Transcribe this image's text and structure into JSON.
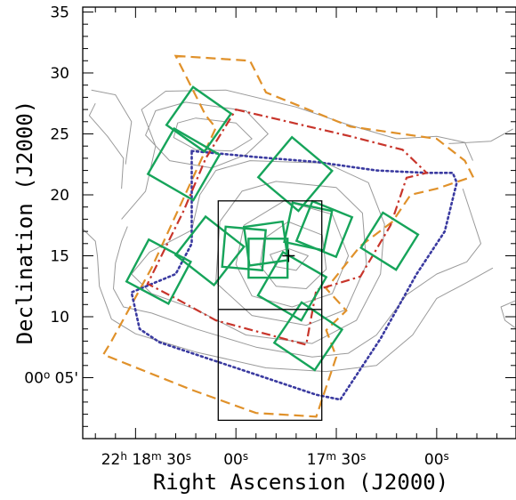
{
  "chart_data": {
    "type": "sky-map",
    "xlabel": "Right Ascension (J2000)",
    "ylabel": "Declination (J2000)",
    "x_tick_labels": [
      {
        "ra_min": 18.5,
        "parts": [
          [
            "22",
            ""
          ],
          [
            "h",
            "sup"
          ],
          [
            " 18",
            ""
          ],
          [
            "m",
            "sup"
          ],
          [
            " 30",
            ""
          ],
          [
            "s",
            "sup"
          ]
        ]
      },
      {
        "ra_min": 18.0,
        "parts": [
          [
            "00",
            ""
          ],
          [
            "s",
            "sup"
          ]
        ]
      },
      {
        "ra_min": 17.5,
        "parts": [
          [
            "17",
            ""
          ],
          [
            "m",
            "sup"
          ],
          [
            " 30",
            ""
          ],
          [
            "s",
            "sup"
          ]
        ]
      },
      {
        "ra_min": 17.0,
        "parts": [
          [
            "00",
            ""
          ],
          [
            "s",
            "sup"
          ]
        ]
      }
    ],
    "y_ticks": [
      {
        "dec_arcmin": 10,
        "label": "10"
      },
      {
        "dec_arcmin": 15,
        "label": "15"
      },
      {
        "dec_arcmin": 20,
        "label": "20"
      },
      {
        "dec_arcmin": 25,
        "label": "25"
      },
      {
        "dec_arcmin": 30,
        "label": "30"
      },
      {
        "dec_arcmin": 35,
        "label": "35"
      }
    ],
    "y_special_label": {
      "dec_arcmin": 5,
      "parts": [
        [
          "00",
          ""
        ],
        [
          "o",
          "sup"
        ],
        [
          " 05'",
          ""
        ]
      ]
    },
    "xlim_ra_min": [
      18.763,
      16.605
    ],
    "ylim_dec_arcmin": [
      0,
      35.4
    ],
    "colors": {
      "contour": "#9a9a9a",
      "fields": "#16a45a",
      "dashed": "#e0912a",
      "dashdot": "#c8352b",
      "dotted": "#3a3aa0",
      "box": "#000000"
    },
    "central_marker": {
      "ra_min": 17.738,
      "dec_arcmin": 15.0
    },
    "rect_box": {
      "ra_min": [
        18.088,
        17.572
      ],
      "dec_arcmin": [
        1.5,
        19.5
      ],
      "divider_dec": 10.6
    },
    "dashed_outline": [
      [
        18.3,
        31.4
      ],
      [
        17.93,
        31.0
      ],
      [
        17.85,
        28.4
      ],
      [
        17.43,
        25.6
      ],
      [
        17.0,
        24.6
      ],
      [
        16.86,
        22.8
      ],
      [
        16.82,
        21.5
      ],
      [
        17.0,
        20.5
      ],
      [
        17.13,
        20.0
      ],
      [
        17.22,
        17.8
      ],
      [
        17.38,
        15.8
      ],
      [
        17.55,
        12.3
      ],
      [
        17.45,
        10.5
      ],
      [
        17.55,
        8.9
      ],
      [
        17.5,
        6.7
      ],
      [
        17.6,
        1.8
      ],
      [
        17.9,
        2.1
      ],
      [
        18.22,
        4.0
      ],
      [
        18.66,
        6.9
      ],
      [
        18.62,
        8.0
      ],
      [
        18.42,
        14.0
      ],
      [
        18.1,
        25.5
      ],
      [
        18.15,
        26.5
      ]
    ],
    "dashdot_outline": [
      [
        18.0,
        27.0
      ],
      [
        17.43,
        24.8
      ],
      [
        17.17,
        23.7
      ],
      [
        17.05,
        21.8
      ],
      [
        17.15,
        21.4
      ],
      [
        17.23,
        17.5
      ],
      [
        17.38,
        13.3
      ],
      [
        17.6,
        12.2
      ],
      [
        17.65,
        7.7
      ],
      [
        18.1,
        9.7
      ],
      [
        18.3,
        11.5
      ],
      [
        18.44,
        12.7
      ],
      [
        18.26,
        18.7
      ],
      [
        18.15,
        23.0
      ]
    ],
    "dotted_outline": [
      [
        18.22,
        23.6
      ],
      [
        17.9,
        23.1
      ],
      [
        17.6,
        22.7
      ],
      [
        17.3,
        22.0
      ],
      [
        17.05,
        21.8
      ],
      [
        16.92,
        21.8
      ],
      [
        16.9,
        21.0
      ],
      [
        16.96,
        17.0
      ],
      [
        17.1,
        13.5
      ],
      [
        17.28,
        8.2
      ],
      [
        17.48,
        3.2
      ],
      [
        17.6,
        3.6
      ],
      [
        18.0,
        5.8
      ],
      [
        18.38,
        7.9
      ],
      [
        18.48,
        9.0
      ],
      [
        18.52,
        12.0
      ],
      [
        18.3,
        13.5
      ],
      [
        18.22,
        16.0
      ]
    ],
    "field_squares": [
      {
        "ra_min": 18.26,
        "dec_arcmin": 22.5,
        "size_arcmin": 4.3,
        "rot_deg": 30
      },
      {
        "ra_min": 18.185,
        "dec_arcmin": 26.2,
        "size_arcmin": 3.8,
        "rot_deg": 35
      },
      {
        "ra_min": 17.705,
        "dec_arcmin": 21.7,
        "size_arcmin": 4.3,
        "rot_deg": 40
      },
      {
        "ra_min": 18.13,
        "dec_arcmin": 15.4,
        "size_arcmin": 4.0,
        "rot_deg": 38
      },
      {
        "ra_min": 18.385,
        "dec_arcmin": 13.7,
        "size_arcmin": 3.9,
        "rot_deg": 28
      },
      {
        "ra_min": 17.96,
        "dec_arcmin": 15.6,
        "size_arcmin": 3.3,
        "rot_deg": 5
      },
      {
        "ra_min": 17.85,
        "dec_arcmin": 16.0,
        "size_arcmin": 3.2,
        "rot_deg": -8
      },
      {
        "ra_min": 17.84,
        "dec_arcmin": 14.8,
        "size_arcmin": 3.2,
        "rot_deg": 0
      },
      {
        "ra_min": 17.64,
        "dec_arcmin": 17.4,
        "size_arcmin": 3.3,
        "rot_deg": 12
      },
      {
        "ra_min": 17.56,
        "dec_arcmin": 17.2,
        "size_arcmin": 3.5,
        "rot_deg": 22
      },
      {
        "ra_min": 17.72,
        "dec_arcmin": 12.5,
        "size_arcmin": 4.1,
        "rot_deg": 30
      },
      {
        "ra_min": 17.235,
        "dec_arcmin": 16.2,
        "size_arcmin": 3.4,
        "rot_deg": 32
      },
      {
        "ra_min": 17.64,
        "dec_arcmin": 8.4,
        "size_arcmin": 4.0,
        "rot_deg": 34
      }
    ],
    "contours": [
      {
        "closed": true,
        "pts": [
          [
            17.74,
            15.6
          ],
          [
            17.64,
            15.0
          ],
          [
            17.7,
            13.8
          ],
          [
            17.8,
            14.1
          ],
          [
            17.83,
            15.1
          ]
        ]
      },
      {
        "closed": true,
        "pts": [
          [
            17.74,
            17.8
          ],
          [
            17.57,
            16.7
          ],
          [
            17.55,
            13.9
          ],
          [
            17.65,
            12.3
          ],
          [
            17.8,
            12.5
          ],
          [
            17.88,
            14.2
          ],
          [
            17.86,
            16.4
          ]
        ]
      },
      {
        "closed": true,
        "pts": [
          [
            17.76,
            19.5
          ],
          [
            17.52,
            18.4
          ],
          [
            17.44,
            15.0
          ],
          [
            17.52,
            11.9
          ],
          [
            17.72,
            10.8
          ],
          [
            17.92,
            11.7
          ],
          [
            18.0,
            14.3
          ],
          [
            17.96,
            17.5
          ]
        ]
      },
      {
        "closed": true,
        "pts": [
          [
            17.8,
            21.1
          ],
          [
            17.5,
            20.6
          ],
          [
            17.37,
            18.5
          ],
          [
            17.35,
            14.3
          ],
          [
            17.45,
            10.6
          ],
          [
            17.65,
            9.3
          ],
          [
            17.92,
            10.1
          ],
          [
            18.1,
            12.8
          ],
          [
            18.08,
            17.8
          ],
          [
            17.97,
            20.3
          ]
        ]
      },
      {
        "closed": true,
        "pts": [
          [
            17.93,
            22.8
          ],
          [
            17.55,
            22.6
          ],
          [
            17.34,
            21.0
          ],
          [
            17.26,
            17.6
          ],
          [
            17.28,
            13.5
          ],
          [
            17.4,
            9.7
          ],
          [
            17.62,
            7.8
          ],
          [
            17.95,
            8.5
          ],
          [
            18.2,
            10.6
          ],
          [
            18.42,
            11.9
          ],
          [
            18.52,
            13.5
          ],
          [
            18.43,
            15.3
          ],
          [
            18.22,
            17.1
          ],
          [
            18.18,
            20.0
          ],
          [
            18.1,
            22.0
          ]
        ]
      },
      {
        "closed": true,
        "pts": [
          [
            18.2,
            26.3
          ],
          [
            18.0,
            25.9
          ],
          [
            17.92,
            24.6
          ],
          [
            18.02,
            23.6
          ],
          [
            18.2,
            23.7
          ],
          [
            18.31,
            24.7
          ],
          [
            18.29,
            25.9
          ]
        ]
      },
      {
        "closed": true,
        "pts": [
          [
            18.25,
            27.6
          ],
          [
            17.95,
            26.9
          ],
          [
            17.84,
            25.0
          ],
          [
            17.95,
            23.3
          ],
          [
            18.12,
            22.2
          ],
          [
            18.33,
            22.8
          ],
          [
            18.45,
            24.9
          ],
          [
            18.4,
            26.9
          ]
        ]
      },
      {
        "closed": false,
        "pts": [
          [
            18.57,
            18.0
          ],
          [
            18.45,
            20.3
          ],
          [
            18.4,
            24.0
          ],
          [
            18.47,
            27.0
          ],
          [
            18.35,
            28.5
          ],
          [
            18.05,
            28.6
          ],
          [
            17.7,
            27.2
          ],
          [
            17.45,
            25.8
          ],
          [
            17.2,
            24.6
          ],
          [
            17.0,
            24.8
          ],
          [
            16.86,
            24.3
          ],
          [
            16.82,
            22.8
          ]
        ]
      },
      {
        "closed": false,
        "pts": [
          [
            18.54,
            17.4
          ],
          [
            18.57,
            16.2
          ],
          [
            18.6,
            14.4
          ],
          [
            18.61,
            12.3
          ],
          [
            18.56,
            10.8
          ],
          [
            18.42,
            10.3
          ],
          [
            18.2,
            9.0
          ],
          [
            17.9,
            7.5
          ],
          [
            17.62,
            6.7
          ],
          [
            17.44,
            7.0
          ],
          [
            17.3,
            8.5
          ],
          [
            17.15,
            11.8
          ],
          [
            17.0,
            13.5
          ],
          [
            16.85,
            14.5
          ],
          [
            16.78,
            16.0
          ],
          [
            16.82,
            18.0
          ],
          [
            16.87,
            20.5
          ]
        ]
      },
      {
        "closed": false,
        "pts": [
          [
            18.7,
            27.5
          ],
          [
            18.73,
            26.5
          ],
          [
            18.64,
            24.8
          ],
          [
            18.56,
            23.0
          ],
          [
            18.57,
            20.5
          ]
        ]
      },
      {
        "closed": false,
        "pts": [
          [
            18.763,
            17.2
          ],
          [
            18.7,
            16.2
          ],
          [
            18.69,
            15.0
          ],
          [
            18.68,
            12.5
          ],
          [
            18.62,
            9.8
          ],
          [
            18.5,
            8.6
          ],
          [
            18.2,
            7.1
          ],
          [
            17.85,
            5.8
          ],
          [
            17.55,
            5.5
          ],
          [
            17.3,
            6.0
          ],
          [
            17.12,
            8.5
          ],
          [
            17.0,
            11.5
          ],
          [
            16.85,
            12.8
          ],
          [
            16.72,
            14.0
          ]
        ]
      },
      {
        "closed": false,
        "pts": [
          [
            18.72,
            28.6
          ],
          [
            18.6,
            28.2
          ],
          [
            18.52,
            26.0
          ],
          [
            18.55,
            22.5
          ]
        ]
      },
      {
        "closed": false,
        "pts": [
          [
            16.94,
            24.2
          ],
          [
            16.73,
            24.4
          ],
          [
            16.62,
            25.4
          ]
        ]
      },
      {
        "closed": false,
        "pts": [
          [
            16.61,
            11.3
          ],
          [
            16.68,
            10.8
          ],
          [
            16.66,
            9.7
          ],
          [
            16.61,
            9.1
          ]
        ]
      }
    ]
  }
}
